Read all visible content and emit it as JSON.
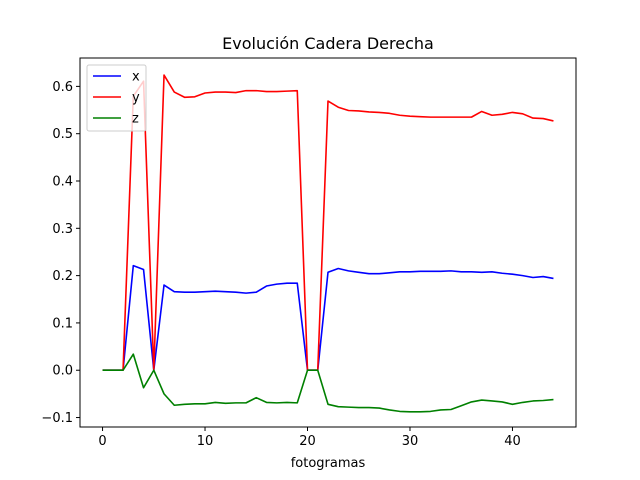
{
  "chart_data": {
    "type": "line",
    "title": "Evolución Cadera Derecha",
    "xlabel": "fotogramas",
    "ylabel": "",
    "xlim": [
      -2.2,
      46.2
    ],
    "ylim": [
      -0.12,
      0.66
    ],
    "xticks": [
      0,
      10,
      20,
      30,
      40
    ],
    "yticks": [
      -0.1,
      0.0,
      0.1,
      0.2,
      0.3,
      0.4,
      0.5,
      0.6
    ],
    "xtick_labels": [
      "0",
      "10",
      "20",
      "30",
      "40"
    ],
    "ytick_labels": [
      "−0.1",
      "0.0",
      "0.1",
      "0.2",
      "0.3",
      "0.4",
      "0.5",
      "0.6"
    ],
    "grid": false,
    "legend_position": "upper-left",
    "x": [
      0,
      1,
      2,
      3,
      4,
      5,
      6,
      7,
      8,
      9,
      10,
      11,
      12,
      13,
      14,
      15,
      16,
      17,
      18,
      19,
      20,
      21,
      22,
      23,
      24,
      25,
      26,
      27,
      28,
      29,
      30,
      31,
      32,
      33,
      34,
      35,
      36,
      37,
      38,
      39,
      40,
      41,
      42,
      43,
      44
    ],
    "series": [
      {
        "name": "x",
        "color": "#0000ff",
        "values": [
          0,
          0,
          0,
          0.221,
          0.213,
          0,
          0.18,
          0.166,
          0.165,
          0.165,
          0.166,
          0.167,
          0.166,
          0.165,
          0.163,
          0.165,
          0.178,
          0.182,
          0.184,
          0.184,
          0,
          0,
          0.207,
          0.215,
          0.21,
          0.207,
          0.204,
          0.204,
          0.206,
          0.208,
          0.208,
          0.209,
          0.209,
          0.209,
          0.21,
          0.208,
          0.208,
          0.207,
          0.208,
          0.205,
          0.203,
          0.2,
          0.196,
          0.198,
          0.194
        ]
      },
      {
        "name": "y",
        "color": "#ff0000",
        "values": [
          0,
          0,
          0,
          0.579,
          0.611,
          0,
          0.624,
          0.588,
          0.577,
          0.578,
          0.586,
          0.588,
          0.588,
          0.587,
          0.591,
          0.591,
          0.589,
          0.589,
          0.59,
          0.591,
          0,
          0,
          0.569,
          0.556,
          0.549,
          0.548,
          0.546,
          0.545,
          0.543,
          0.539,
          0.537,
          0.536,
          0.535,
          0.535,
          0.535,
          0.535,
          0.535,
          0.547,
          0.539,
          0.541,
          0.545,
          0.542,
          0.533,
          0.532,
          0.527
        ]
      },
      {
        "name": "z",
        "color": "#008000",
        "values": [
          0,
          0,
          0,
          0.034,
          -0.037,
          0,
          -0.05,
          -0.074,
          -0.072,
          -0.071,
          -0.071,
          -0.068,
          -0.07,
          -0.069,
          -0.069,
          -0.058,
          -0.068,
          -0.069,
          -0.068,
          -0.069,
          0,
          0,
          -0.072,
          -0.077,
          -0.078,
          -0.079,
          -0.079,
          -0.08,
          -0.084,
          -0.087,
          -0.088,
          -0.088,
          -0.087,
          -0.084,
          -0.083,
          -0.075,
          -0.067,
          -0.063,
          -0.065,
          -0.067,
          -0.072,
          -0.068,
          -0.065,
          -0.064,
          -0.062
        ]
      }
    ]
  }
}
